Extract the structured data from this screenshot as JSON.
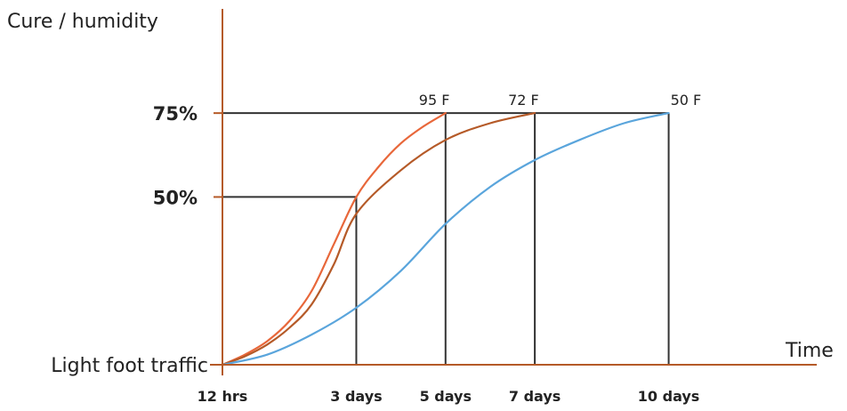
{
  "chart_data": {
    "type": "line",
    "title": "",
    "ylabel": "Cure / humidity",
    "xlabel": "Time",
    "x_ticks": [
      {
        "x": 0,
        "label": "12 hrs"
      },
      {
        "x": 3,
        "label": "3 days"
      },
      {
        "x": 5,
        "label": "5 days"
      },
      {
        "x": 7,
        "label": "7 days"
      },
      {
        "x": 10,
        "label": "10 days"
      }
    ],
    "y_ticks": [
      {
        "y": 0,
        "label": "Light foot traffic"
      },
      {
        "y": 50,
        "label": "50%"
      },
      {
        "y": 75,
        "label": "75%"
      }
    ],
    "xlim": [
      0,
      12.8
    ],
    "ylim": [
      0,
      105
    ],
    "grid": false,
    "series": [
      {
        "name": "95 F",
        "color": "#e8673a",
        "points": [
          [
            0,
            0
          ],
          [
            0.5,
            3
          ],
          [
            1.0,
            7
          ],
          [
            1.5,
            13
          ],
          [
            2.0,
            22
          ],
          [
            2.5,
            36
          ],
          [
            3.0,
            50
          ],
          [
            3.5,
            59
          ],
          [
            4.0,
            66
          ],
          [
            4.5,
            71
          ],
          [
            5.0,
            75
          ]
        ]
      },
      {
        "name": "72 F",
        "color": "#b55a28",
        "points": [
          [
            0,
            0
          ],
          [
            0.5,
            2.5
          ],
          [
            1.0,
            6
          ],
          [
            1.5,
            11
          ],
          [
            2.0,
            18
          ],
          [
            2.5,
            30
          ],
          [
            3.0,
            45
          ],
          [
            4.0,
            58
          ],
          [
            5.0,
            67
          ],
          [
            6.0,
            72
          ],
          [
            7.0,
            75
          ]
        ]
      },
      {
        "name": "50 F",
        "color": "#5aa5dc",
        "points": [
          [
            0,
            0
          ],
          [
            1.0,
            3
          ],
          [
            2.0,
            9
          ],
          [
            3.0,
            17
          ],
          [
            4.0,
            28
          ],
          [
            5.0,
            42
          ],
          [
            6.0,
            53
          ],
          [
            7.0,
            61
          ],
          [
            8.0,
            67
          ],
          [
            9.0,
            72
          ],
          [
            10.0,
            75
          ]
        ]
      }
    ],
    "reference_lines": [
      {
        "type": "horizontal",
        "y": 75,
        "x_from": 0,
        "x_to": 10
      },
      {
        "type": "horizontal",
        "y": 50,
        "x_from": 0,
        "x_to": 3
      },
      {
        "type": "vertical",
        "x": 3,
        "y_from": 0,
        "y_to": 50
      },
      {
        "type": "vertical",
        "x": 5,
        "y_from": 0,
        "y_to": 75
      },
      {
        "type": "vertical",
        "x": 7,
        "y_from": 0,
        "y_to": 75
      },
      {
        "type": "vertical",
        "x": 10,
        "y_from": 0,
        "y_to": 75
      }
    ],
    "axis_color": "#b55a28",
    "reference_color": "#333333"
  }
}
